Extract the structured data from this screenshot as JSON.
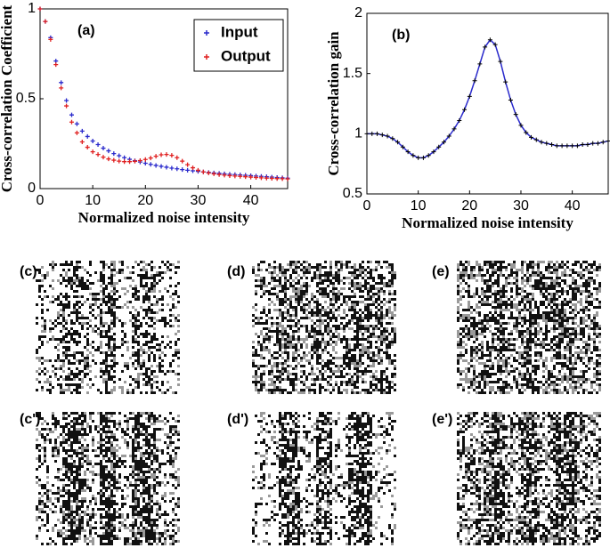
{
  "chart_data": [
    {
      "type": "scatter",
      "title": "(a)",
      "xlabel": "Normalized noise intensity",
      "ylabel": "Cross-correlation Coefficient",
      "x": [
        0,
        1,
        2,
        3,
        4,
        5,
        6,
        7,
        8,
        9,
        10,
        11,
        12,
        13,
        14,
        15,
        16,
        17,
        18,
        19,
        20,
        21,
        22,
        23,
        24,
        25,
        26,
        27,
        28,
        29,
        30,
        31,
        32,
        33,
        34,
        35,
        36,
        37,
        38,
        39,
        40,
        41,
        42,
        43,
        44,
        45,
        46,
        47
      ],
      "series": [
        {
          "name": "Input",
          "color": "#2a2acc",
          "values": [
            1.0,
            0.93,
            0.84,
            0.71,
            0.59,
            0.49,
            0.41,
            0.36,
            0.32,
            0.29,
            0.265,
            0.245,
            0.225,
            0.21,
            0.195,
            0.183,
            0.172,
            0.163,
            0.155,
            0.148,
            0.141,
            0.135,
            0.129,
            0.124,
            0.119,
            0.114,
            0.11,
            0.106,
            0.102,
            0.099,
            0.096,
            0.093,
            0.09,
            0.087,
            0.085,
            0.082,
            0.08,
            0.078,
            0.076,
            0.074,
            0.072,
            0.07,
            0.068,
            0.066,
            0.064,
            0.062,
            0.06,
            0.058
          ]
        },
        {
          "name": "Output",
          "color": "#e02020",
          "values": [
            1.0,
            0.93,
            0.83,
            0.69,
            0.56,
            0.46,
            0.37,
            0.31,
            0.26,
            0.23,
            0.205,
            0.19,
            0.175,
            0.165,
            0.158,
            0.153,
            0.15,
            0.15,
            0.152,
            0.156,
            0.162,
            0.17,
            0.18,
            0.188,
            0.19,
            0.185,
            0.172,
            0.153,
            0.133,
            0.116,
            0.102,
            0.093,
            0.087,
            0.082,
            0.078,
            0.075,
            0.072,
            0.07,
            0.068,
            0.066,
            0.064,
            0.062,
            0.06,
            0.058,
            0.057,
            0.056,
            0.055,
            0.054
          ]
        }
      ],
      "xlim": [
        0,
        47
      ],
      "xticks": [
        0,
        10,
        20,
        30,
        40
      ],
      "ylim": [
        0,
        1
      ],
      "yticks": [
        0,
        0.5,
        1
      ],
      "legend": "upper right"
    },
    {
      "type": "line",
      "title": "(b)",
      "xlabel": "Normalized noise intensity",
      "ylabel": "Cross-correlation gain",
      "x": [
        0,
        1,
        2,
        3,
        4,
        5,
        6,
        7,
        8,
        9,
        10,
        11,
        12,
        13,
        14,
        15,
        16,
        17,
        18,
        19,
        20,
        21,
        22,
        23,
        24,
        25,
        26,
        27,
        28,
        29,
        30,
        31,
        32,
        33,
        34,
        35,
        36,
        37,
        38,
        39,
        40,
        41,
        42,
        43,
        44,
        45,
        46,
        47
      ],
      "values": [
        1.0,
        1.0,
        1.0,
        0.99,
        0.98,
        0.96,
        0.93,
        0.89,
        0.85,
        0.82,
        0.8,
        0.8,
        0.82,
        0.85,
        0.89,
        0.93,
        0.98,
        1.04,
        1.11,
        1.2,
        1.31,
        1.44,
        1.58,
        1.72,
        1.78,
        1.74,
        1.6,
        1.43,
        1.28,
        1.16,
        1.07,
        1.01,
        0.97,
        0.95,
        0.93,
        0.92,
        0.91,
        0.9,
        0.9,
        0.9,
        0.9,
        0.9,
        0.91,
        0.91,
        0.92,
        0.92,
        0.93,
        0.94
      ],
      "color": "#2a2acc",
      "marker_color": "#000000",
      "xlim": [
        0,
        47
      ],
      "xticks": [
        0,
        10,
        20,
        30,
        40
      ],
      "ylim": [
        0.5,
        2
      ],
      "yticks": [
        0.5,
        1,
        1.5,
        2
      ]
    }
  ],
  "panels": [
    "(c)",
    "(d)",
    "(e)",
    "(c')",
    "(d')",
    "(e')"
  ]
}
